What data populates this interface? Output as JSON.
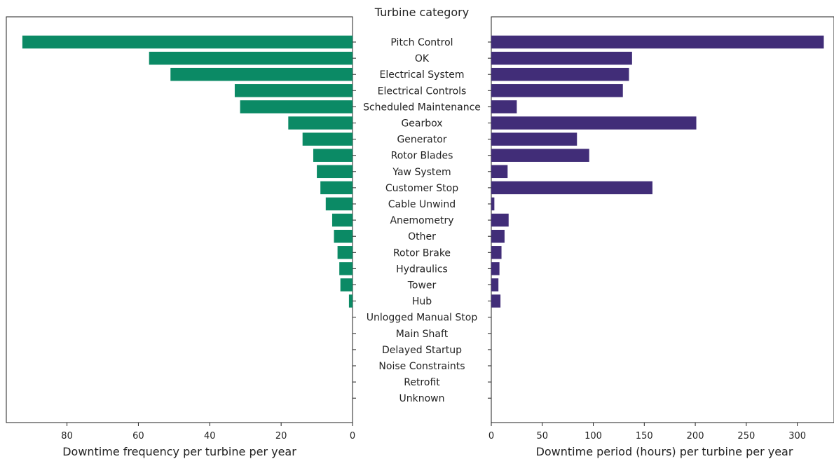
{
  "chart_data": {
    "type": "bar",
    "title": "Turbine category",
    "categories": [
      "Pitch Control",
      "OK",
      "Electrical System",
      "Electrical Controls",
      "Scheduled Maintenance",
      "Gearbox",
      "Generator",
      "Rotor Blades",
      "Yaw System",
      "Customer Stop",
      "Cable Unwind",
      "Anemometry",
      "Other",
      "Rotor Brake",
      "Hydraulics",
      "Tower",
      "Hub",
      "Unlogged Manual Stop",
      "Main Shaft",
      "Delayed Startup",
      "Noise Constraints",
      "Retrofit",
      "Unknown"
    ],
    "series": [
      {
        "xlabel": "Downtime frequency per turbine per year",
        "color": "#0b8a65",
        "xlim": [
          0,
          97
        ],
        "xticks": [
          80,
          60,
          40,
          20,
          0
        ],
        "direction": "reversed",
        "values": [
          92.5,
          57,
          51,
          33,
          31.5,
          18,
          14,
          11,
          10,
          9,
          7.5,
          5.7,
          5.2,
          4.2,
          3.7,
          3.4,
          1,
          0,
          0,
          0,
          0,
          0,
          0
        ]
      },
      {
        "xlabel": "Downtime period (hours) per turbine per year",
        "color": "#412d78",
        "xlim": [
          0,
          336
        ],
        "xticks": [
          0,
          50,
          100,
          150,
          200,
          250,
          300
        ],
        "direction": "normal",
        "values": [
          326,
          138,
          135,
          129,
          25,
          201,
          84,
          96,
          16,
          158,
          3,
          17,
          13,
          10,
          8,
          7,
          9,
          0,
          0,
          0,
          0,
          0,
          0
        ]
      }
    ]
  }
}
